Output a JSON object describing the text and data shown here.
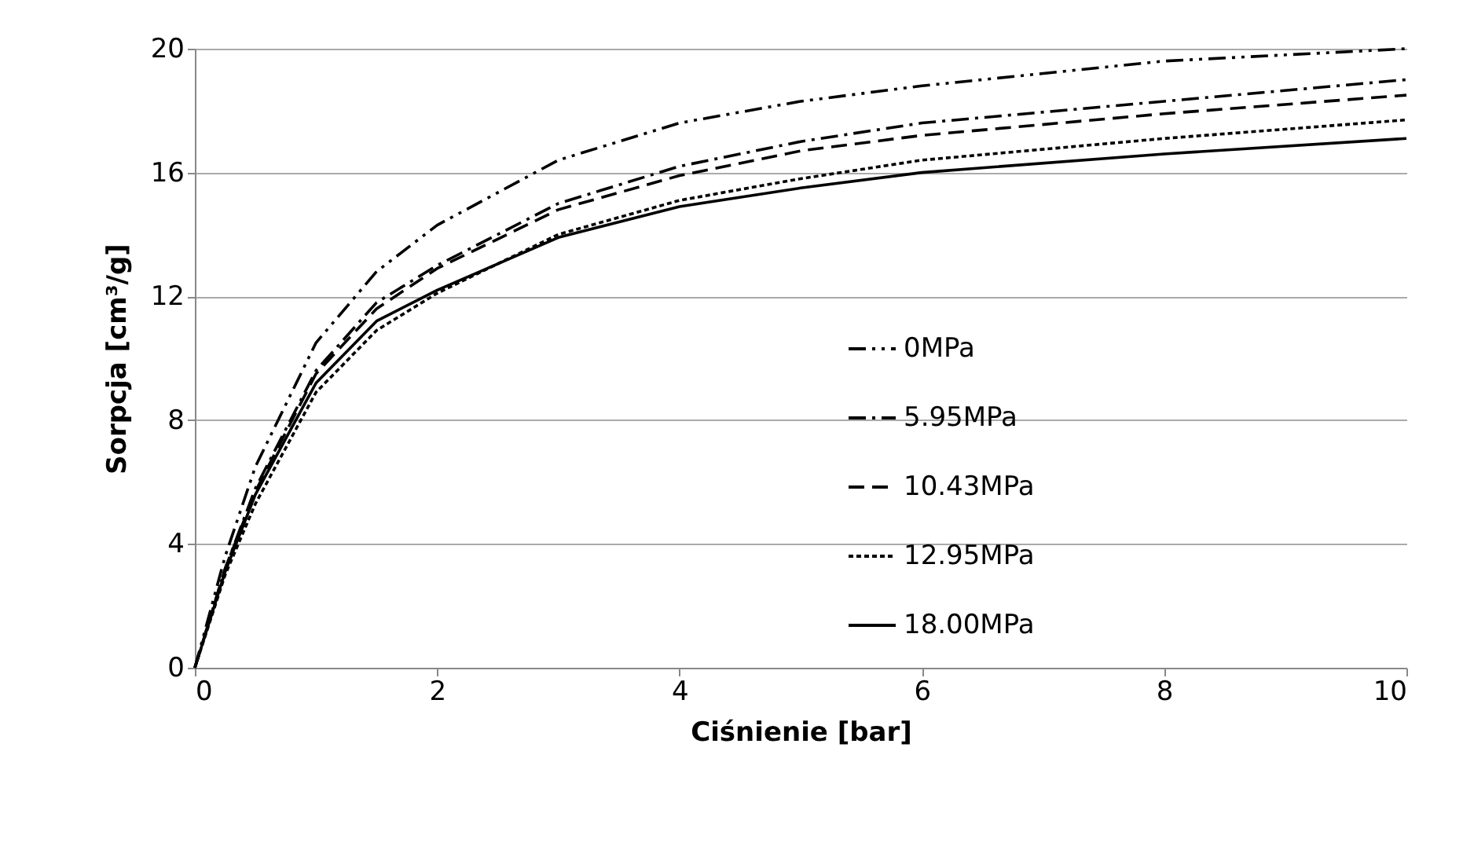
{
  "chart_data": {
    "type": "line",
    "xlabel": "Ciśnienie [bar]",
    "ylabel": "Sorpcja [cm³/g]",
    "x": [
      0,
      0.25,
      0.5,
      1,
      1.5,
      2,
      3,
      4,
      5,
      6,
      8,
      10
    ],
    "series": [
      {
        "name": "0MPa",
        "color": "#000000",
        "line_style": "dash-dot-dot",
        "values": [
          0,
          3.6,
          6.5,
          10.5,
          12.8,
          14.3,
          16.4,
          17.6,
          18.3,
          18.8,
          19.6,
          20.0
        ]
      },
      {
        "name": "5.95MPa",
        "color": "#000000",
        "line_style": "dash-dot",
        "values": [
          0,
          3.2,
          5.8,
          9.6,
          11.8,
          13.0,
          15.0,
          16.2,
          17.0,
          17.6,
          18.3,
          19.0
        ]
      },
      {
        "name": "10.43MPa",
        "color": "#000000",
        "line_style": "dashed",
        "values": [
          0,
          3.2,
          5.7,
          9.5,
          11.6,
          12.9,
          14.8,
          15.9,
          16.7,
          17.2,
          17.9,
          18.5
        ]
      },
      {
        "name": "12.95MPa",
        "color": "#000000",
        "line_style": "dotted",
        "values": [
          0,
          3.0,
          5.3,
          8.9,
          10.9,
          12.1,
          14.0,
          15.1,
          15.8,
          16.4,
          17.1,
          17.7
        ]
      },
      {
        "name": "18.00MPa",
        "color": "#000000",
        "line_style": "solid",
        "values": [
          0,
          3.1,
          5.6,
          9.2,
          11.2,
          12.2,
          13.9,
          14.9,
          15.5,
          16.0,
          16.6,
          17.1
        ]
      }
    ],
    "xlim": [
      0,
      10
    ],
    "xticks": [
      0,
      2,
      4,
      6,
      8,
      10
    ],
    "ylim": [
      0,
      20
    ],
    "yticks": [
      0,
      4,
      8,
      12,
      16,
      20
    ],
    "grid": "y",
    "legend": "right",
    "marker": "none"
  }
}
